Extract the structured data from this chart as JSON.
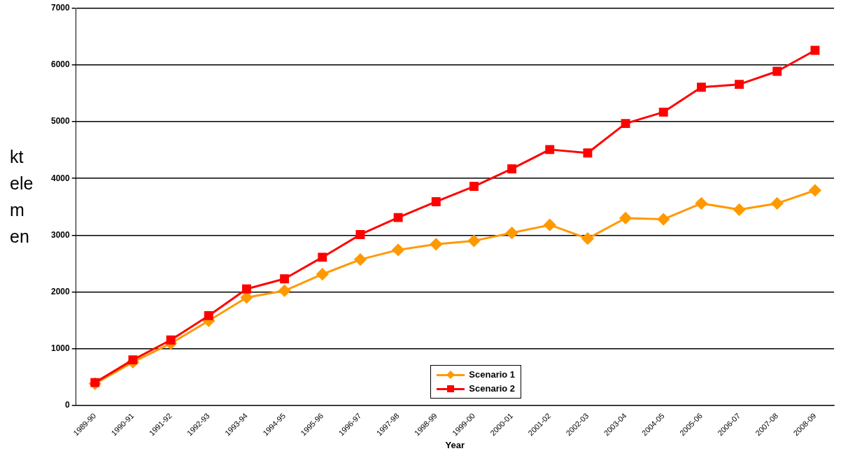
{
  "chart_data": {
    "type": "line",
    "xlabel": "Year",
    "ylabel": "kt elemen",
    "categories": [
      "1989-90",
      "1990-91",
      "1991-92",
      "1992-93",
      "1993-94",
      "1994-95",
      "1995-96",
      "1996-97",
      "1997-98",
      "1998-99",
      "1999-00",
      "2000-01",
      "2001-02",
      "2002-03",
      "2003-04",
      "2004-05",
      "2005-06",
      "2006-07",
      "2007-08",
      "2008-09"
    ],
    "series": [
      {
        "name": "Scenario 1",
        "color": "#ff9900",
        "marker": "diamond",
        "values": [
          380,
          760,
          1090,
          1490,
          1900,
          2020,
          2310,
          2570,
          2740,
          2840,
          2900,
          3040,
          3180,
          2940,
          3300,
          3280,
          3560,
          3450,
          3560,
          3790
        ]
      },
      {
        "name": "Scenario 2",
        "color": "#ff0000",
        "marker": "square",
        "values": [
          400,
          800,
          1150,
          1580,
          2050,
          2230,
          2610,
          3010,
          3310,
          3590,
          3860,
          4170,
          4510,
          4450,
          4970,
          5170,
          5610,
          5660,
          5890,
          6260
        ]
      }
    ],
    "ylim": [
      0,
      7000
    ],
    "yticks": [
      0,
      1000,
      2000,
      3000,
      4000,
      5000,
      6000,
      7000
    ],
    "grid": "y",
    "legend": "bottom",
    "line_style": "solid"
  }
}
